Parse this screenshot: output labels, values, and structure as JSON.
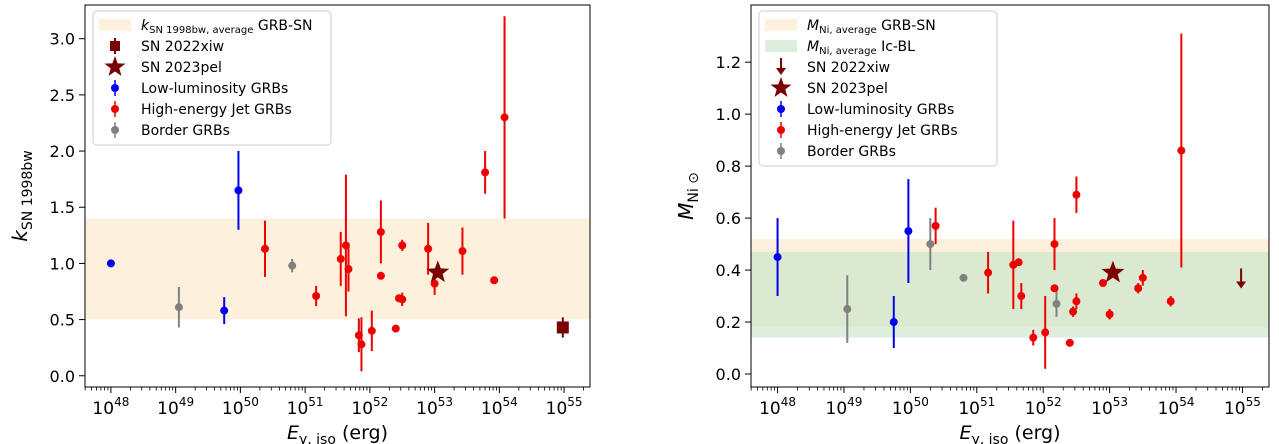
{
  "charts": [
    {
      "type": "scatter",
      "ylabel_main": "k",
      "ylabel_sub": "SN 1998bw",
      "xlabel_main": "E",
      "xlabel_sub": "γ, iso",
      "xlabel_unit": " (erg)",
      "xscale": "log",
      "xlim_exp": [
        47.6,
        55.4
      ],
      "ylim": [
        -0.1,
        3.3
      ],
      "yticks": [
        0.0,
        0.5,
        1.0,
        1.5,
        2.0,
        2.5,
        3.0
      ],
      "ytick_labels": [
        "0.0",
        "0.5",
        "1.0",
        "1.5",
        "2.0",
        "2.5",
        "3.0"
      ],
      "xtick_exps": [
        48,
        49,
        50,
        51,
        52,
        53,
        54,
        55
      ],
      "band_color": "#fdf1dd",
      "bands": [
        {
          "y0": 0.5,
          "y1": 1.4,
          "color": "#fdf1dd"
        }
      ],
      "legend_position": "top-left",
      "legend": [
        {
          "kind": "patch",
          "color": "#fdf1dd",
          "main": "k",
          "sub": "SN 1998bw, average",
          "rest": " GRB-SN"
        },
        {
          "kind": "square",
          "color": "#7b0000",
          "main": "SN 2022xiw"
        },
        {
          "kind": "star",
          "color": "#7b0000",
          "main": "SN 2023pel"
        },
        {
          "kind": "dot",
          "color": "#0000ee",
          "main": "Low-luminosity GRBs"
        },
        {
          "kind": "dot",
          "color": "#ee0000",
          "main": "High-energy Jet GRBs"
        },
        {
          "kind": "dot",
          "color": "#808080",
          "main": "Border GRBs"
        }
      ],
      "series": [
        {
          "name": "Low-luminosity GRBs",
          "color": "#0000ee",
          "points": [
            {
              "x": 48.0,
              "y": 1.0,
              "lo": 0.0,
              "hi": 0.0
            },
            {
              "x": 49.75,
              "y": 0.58,
              "lo": 0.12,
              "hi": 0.12
            },
            {
              "x": 49.97,
              "y": 1.65,
              "lo": 0.35,
              "hi": 0.35
            }
          ]
        },
        {
          "name": "Border GRBs",
          "color": "#808080",
          "points": [
            {
              "x": 49.05,
              "y": 0.61,
              "lo": 0.18,
              "hi": 0.18
            },
            {
              "x": 50.8,
              "y": 0.98,
              "lo": 0.06,
              "hi": 0.06
            }
          ]
        },
        {
          "name": "High-energy Jet GRBs",
          "color": "#ee0000",
          "points": [
            {
              "x": 50.38,
              "y": 1.13,
              "lo": 0.25,
              "hi": 0.25
            },
            {
              "x": 51.17,
              "y": 0.71,
              "lo": 0.09,
              "hi": 0.09
            },
            {
              "x": 51.55,
              "y": 1.04,
              "lo": 0.24,
              "hi": 0.24
            },
            {
              "x": 51.63,
              "y": 1.16,
              "lo": 0.63,
              "hi": 0.63
            },
            {
              "x": 51.67,
              "y": 0.95,
              "lo": 0.2,
              "hi": 0.2
            },
            {
              "x": 51.83,
              "y": 0.36,
              "lo": 0.15,
              "hi": 0.15
            },
            {
              "x": 51.87,
              "y": 0.28,
              "lo": 0.24,
              "hi": 0.24
            },
            {
              "x": 52.03,
              "y": 0.4,
              "lo": 0.18,
              "hi": 0.18
            },
            {
              "x": 52.17,
              "y": 0.89,
              "lo": 0.0,
              "hi": 0.0
            },
            {
              "x": 52.17,
              "y": 1.28,
              "lo": 0.28,
              "hi": 0.28
            },
            {
              "x": 52.4,
              "y": 0.42,
              "lo": 0.0,
              "hi": 0.0
            },
            {
              "x": 52.45,
              "y": 0.69,
              "lo": 0.0,
              "hi": 0.0
            },
            {
              "x": 52.5,
              "y": 0.68,
              "lo": 0.06,
              "hi": 0.06
            },
            {
              "x": 52.5,
              "y": 1.16,
              "lo": 0.05,
              "hi": 0.05
            },
            {
              "x": 52.9,
              "y": 1.13,
              "lo": 0.23,
              "hi": 0.23
            },
            {
              "x": 53.0,
              "y": 0.82,
              "lo": 0.1,
              "hi": 0.1
            },
            {
              "x": 53.43,
              "y": 1.11,
              "lo": 0.21,
              "hi": 0.21
            },
            {
              "x": 53.78,
              "y": 1.81,
              "lo": 0.19,
              "hi": 0.19
            },
            {
              "x": 53.92,
              "y": 0.85,
              "lo": 0.0,
              "hi": 0.0
            },
            {
              "x": 54.08,
              "y": 2.3,
              "lo": 0.9,
              "hi": 0.9
            }
          ]
        }
      ],
      "sn2023pel": {
        "x": 53.05,
        "y": 0.92
      },
      "sn2022xiw": {
        "x": 54.98,
        "y": 0.43,
        "lo": 0.09,
        "hi": 0.09,
        "kind": "square"
      }
    },
    {
      "type": "scatter",
      "ylabel_main": "M",
      "ylabel_sub": "Ni ⊙",
      "xlabel_main": "E",
      "xlabel_sub": "γ, iso",
      "xlabel_unit": " (erg)",
      "xscale": "log",
      "xlim_exp": [
        47.6,
        55.4
      ],
      "ylim": [
        -0.05,
        1.42
      ],
      "yticks": [
        0.0,
        0.2,
        0.4,
        0.6,
        0.8,
        1.0,
        1.2
      ],
      "ytick_labels": [
        "0.0",
        "0.2",
        "0.4",
        "0.6",
        "0.8",
        "1.0",
        "1.2"
      ],
      "xtick_exps": [
        48,
        49,
        50,
        51,
        52,
        53,
        54,
        55
      ],
      "bands": [
        {
          "y0": 0.18,
          "y1": 0.52,
          "color": "#fdf1dd"
        },
        {
          "y0": 0.14,
          "y1": 0.47,
          "color": "#c9e5cb",
          "opacity": 0.65
        }
      ],
      "legend_position": "top-left",
      "legend": [
        {
          "kind": "patch",
          "color": "#fdf1dd",
          "main": "M",
          "sub": "Ni, average",
          "rest": " GRB-SN"
        },
        {
          "kind": "patch",
          "color": "#dcefdd",
          "main": "M",
          "sub": "Ni, average",
          "rest": " Ic-BL"
        },
        {
          "kind": "arrow",
          "color": "#7b0000",
          "main": "SN 2022xiw"
        },
        {
          "kind": "star",
          "color": "#7b0000",
          "main": "SN 2023pel"
        },
        {
          "kind": "dot",
          "color": "#0000ee",
          "main": "Low-luminosity GRBs"
        },
        {
          "kind": "dot",
          "color": "#ee0000",
          "main": "High-energy Jet GRBs"
        },
        {
          "kind": "dot",
          "color": "#808080",
          "main": "Border GRBs"
        }
      ],
      "series": [
        {
          "name": "Low-luminosity GRBs",
          "color": "#0000ee",
          "points": [
            {
              "x": 48.0,
              "y": 0.45,
              "lo": 0.15,
              "hi": 0.15
            },
            {
              "x": 49.75,
              "y": 0.2,
              "lo": 0.1,
              "hi": 0.1
            },
            {
              "x": 49.97,
              "y": 0.55,
              "lo": 0.2,
              "hi": 0.2
            }
          ]
        },
        {
          "name": "Border GRBs",
          "color": "#808080",
          "points": [
            {
              "x": 49.05,
              "y": 0.25,
              "lo": 0.13,
              "hi": 0.13
            },
            {
              "x": 50.3,
              "y": 0.5,
              "lo": 0.1,
              "hi": 0.1
            },
            {
              "x": 50.8,
              "y": 0.37,
              "lo": 0.0,
              "hi": 0.0
            },
            {
              "x": 52.2,
              "y": 0.27,
              "lo": 0.05,
              "hi": 0.05
            }
          ]
        },
        {
          "name": "High-energy Jet GRBs",
          "color": "#ee0000",
          "points": [
            {
              "x": 50.38,
              "y": 0.57,
              "lo": 0.07,
              "hi": 0.07
            },
            {
              "x": 51.17,
              "y": 0.39,
              "lo": 0.08,
              "hi": 0.08
            },
            {
              "x": 51.55,
              "y": 0.42,
              "lo": 0.17,
              "hi": 0.17
            },
            {
              "x": 51.63,
              "y": 0.43,
              "lo": 0.0,
              "hi": 0.0
            },
            {
              "x": 51.67,
              "y": 0.3,
              "lo": 0.05,
              "hi": 0.05
            },
            {
              "x": 51.85,
              "y": 0.14,
              "lo": 0.03,
              "hi": 0.03
            },
            {
              "x": 52.03,
              "y": 0.16,
              "lo": 0.14,
              "hi": 0.14
            },
            {
              "x": 52.17,
              "y": 0.33,
              "lo": 0.0,
              "hi": 0.0
            },
            {
              "x": 52.17,
              "y": 0.5,
              "lo": 0.1,
              "hi": 0.1
            },
            {
              "x": 52.4,
              "y": 0.12,
              "lo": 0.0,
              "hi": 0.0
            },
            {
              "x": 52.45,
              "y": 0.24,
              "lo": 0.02,
              "hi": 0.02
            },
            {
              "x": 52.5,
              "y": 0.28,
              "lo": 0.03,
              "hi": 0.03
            },
            {
              "x": 52.5,
              "y": 0.69,
              "lo": 0.07,
              "hi": 0.07
            },
            {
              "x": 52.9,
              "y": 0.35,
              "lo": 0.0,
              "hi": 0.0
            },
            {
              "x": 53.0,
              "y": 0.23,
              "lo": 0.02,
              "hi": 0.02
            },
            {
              "x": 53.43,
              "y": 0.33,
              "lo": 0.02,
              "hi": 0.02
            },
            {
              "x": 53.5,
              "y": 0.37,
              "lo": 0.03,
              "hi": 0.03
            },
            {
              "x": 53.92,
              "y": 0.28,
              "lo": 0.02,
              "hi": 0.02
            },
            {
              "x": 54.08,
              "y": 0.86,
              "lo": 0.45,
              "hi": 0.45
            }
          ]
        }
      ],
      "sn2023pel": {
        "x": 53.05,
        "y": 0.39
      },
      "sn2022xiw": {
        "x": 54.98,
        "y": 0.36,
        "kind": "arrow"
      }
    }
  ]
}
